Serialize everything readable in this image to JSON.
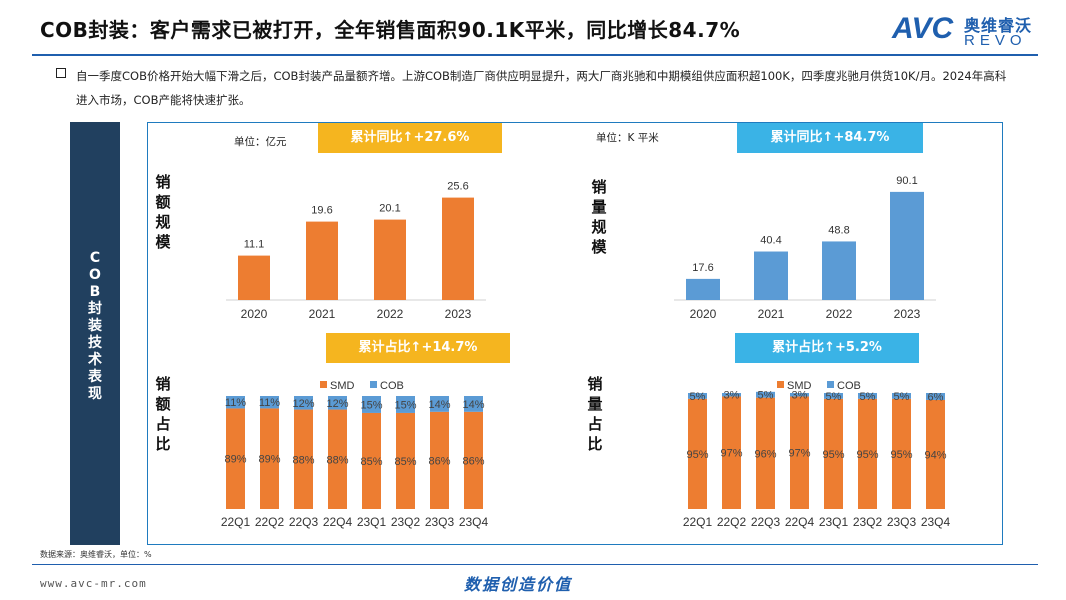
{
  "title": "COB封装：客户需求已被打开，全年销售面积90.1K平米，同比增长84.7%",
  "logo": {
    "brand": "AVC",
    "cn": "奥维睿沃",
    "en": "REVO"
  },
  "intro": "自一季度COB价格开始大幅下滑之后，COB封装产品量额齐增。上游COB制造厂商供应明显提升，两大厂商兆驰和中期模组供应面积超100K，四季度兆驰月供货10K/月。2024年高科进入市场，COB产能将快速扩张。",
  "sidebar_label": "COB封装技术表现",
  "footer": {
    "source": "数据来源：奥维睿沃，单位：%",
    "url": "www.avc-mr.com",
    "slogan": "数据创造价值"
  },
  "colors": {
    "orange": "#ed7d31",
    "blue": "#5b9bd5",
    "accent_yellow": "#f5b51f",
    "accent_cyan": "#3ab3e6",
    "navy": "#21405f"
  },
  "charts": {
    "sales_scale": {
      "vlabel": "销额规模",
      "unit": "单位：亿元",
      "badge": "累计同比↑+27.6%"
    },
    "volume_scale": {
      "vlabel": "销量规模",
      "unit": "单位：K 平米",
      "badge": "累计同比↑+84.7%"
    },
    "sales_share": {
      "vlabel": "销额占比",
      "badge": "累计占比↑+14.7%"
    },
    "volume_share": {
      "vlabel": "销量占比",
      "badge": "累计占比↑+5.2%"
    }
  },
  "chart_data": [
    {
      "type": "bar",
      "categories": [
        "2020",
        "2021",
        "2022",
        "2023"
      ],
      "values": [
        11.1,
        19.6,
        20.1,
        25.6
      ],
      "ylim": [
        0,
        30
      ],
      "color": "#ed7d31"
    },
    {
      "type": "bar",
      "categories": [
        "2020",
        "2021",
        "2022",
        "2023"
      ],
      "values": [
        17.6,
        40.4,
        48.8,
        90.1
      ],
      "ylim": [
        0,
        100
      ],
      "color": "#5b9bd5"
    },
    {
      "type": "bar",
      "stacked": true,
      "legend": "top",
      "categories": [
        "22Q1",
        "22Q2",
        "22Q3",
        "22Q4",
        "23Q1",
        "23Q2",
        "23Q3",
        "23Q4"
      ],
      "series": [
        {
          "name": "SMD",
          "values": [
            89,
            89,
            88,
            88,
            85,
            85,
            86,
            86
          ],
          "color": "#ed7d31"
        },
        {
          "name": "COB",
          "values": [
            11,
            11,
            12,
            12,
            15,
            15,
            14,
            14
          ],
          "color": "#5b9bd5"
        }
      ]
    },
    {
      "type": "bar",
      "stacked": true,
      "legend": "top",
      "categories": [
        "22Q1",
        "22Q2",
        "22Q3",
        "22Q4",
        "23Q1",
        "23Q2",
        "23Q3",
        "23Q4"
      ],
      "series": [
        {
          "name": "SMD",
          "values": [
            95,
            97,
            96,
            97,
            95,
            95,
            95,
            94
          ],
          "color": "#ed7d31"
        },
        {
          "name": "COB",
          "values": [
            5,
            3,
            5,
            3,
            5,
            5,
            5,
            6
          ],
          "color": "#5b9bd5"
        }
      ]
    }
  ]
}
